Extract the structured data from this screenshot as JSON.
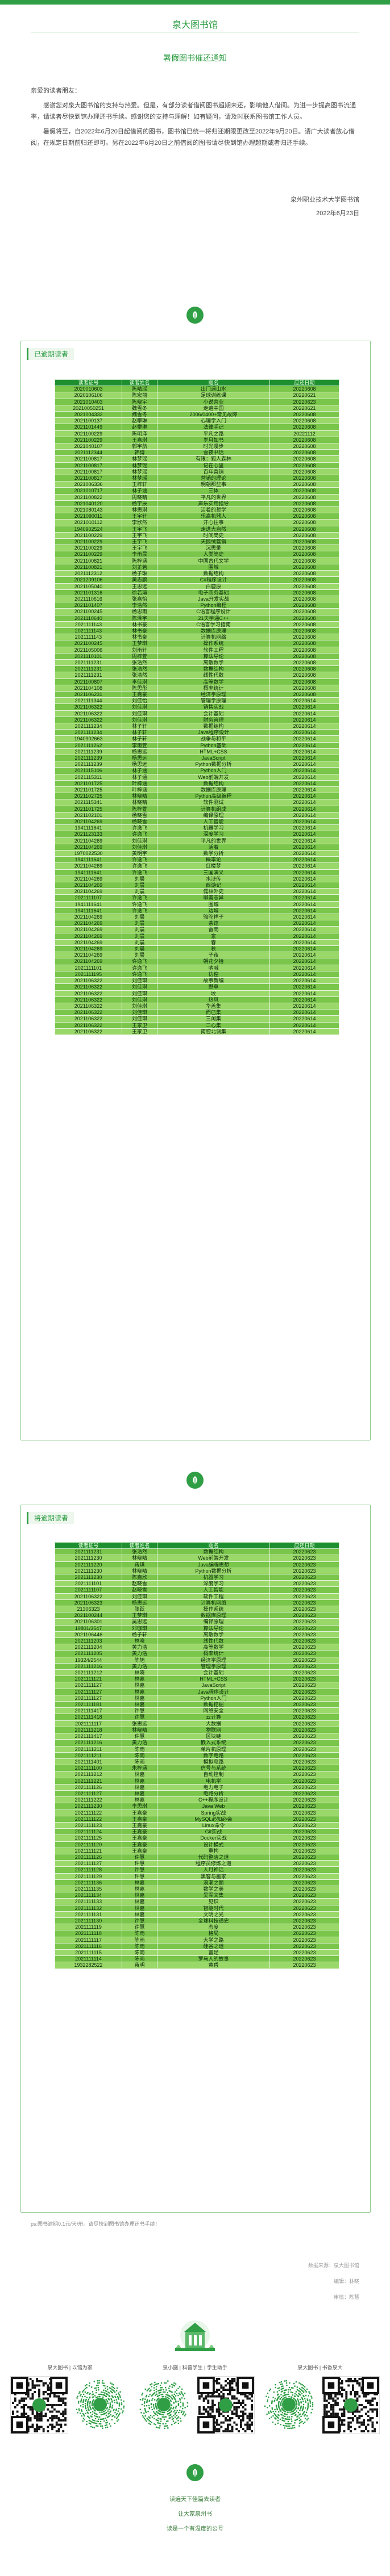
{
  "site_title": "泉大图书馆",
  "page_title": "暑假图书催还通知",
  "letter": {
    "greeting": "亲爱的读者朋友：",
    "p1": "感谢您对泉大图书馆的支持与热爱。但是，有部分读者借阅图书超期未还，影响他人借阅。为进一步提高图书流通率，请读者尽快到馆办理还书手续。感谢您的支持与理解！如有疑问，请及时联系图书馆工作人员。",
    "p2": "暑假将至，自2022年6月20日起借阅的图书，图书馆已统一将归还期限更改至2022年9月20日。请广大读者放心借阅，在规定日期前归还即可。另在2022年6月20日之前借阅的图书请尽快到馆办理超期或者归还手续。",
    "org": "泉州职业技术大学图书馆",
    "date": "2022年6月23日"
  },
  "sections": {
    "overdue": {
      "title": "已逾期读者",
      "headers": [
        "读者证号",
        "读者姓名",
        "题名",
        "应还日期"
      ],
      "rows": [
        [
          "2020010603",
          "陈晴瑶",
          "出门遇山水",
          "20220608"
        ],
        [
          "2020106106",
          "陈宏丽",
          "足球训练课",
          "20220621"
        ],
        [
          "2021010403",
          "陈晓宇",
          "小说营业",
          "20220623"
        ],
        [
          "20210050251",
          "魏雪冬",
          "走遍中国",
          "20220621"
        ],
        [
          "2021004332",
          "魏雪冬",
          "2006/0400+常见故障",
          "20220608"
        ],
        [
          "2021100137",
          "赵攀琳",
          "心理学入门",
          "20220608"
        ],
        [
          "2021101449",
          "赵攀琳",
          "法律手记",
          "20220608"
        ],
        [
          "2021100229",
          "陈明泽",
          "平凡之路",
          "20221112"
        ],
        [
          "2021100229",
          "王嘉琪",
          "岁月如书",
          "20220608"
        ],
        [
          "2021040107",
          "郭宇航",
          "时光漫步",
          "20220608"
        ],
        [
          "2021112344",
          "韩博",
          "雪夜书话",
          "20220608"
        ],
        [
          "2021100817",
          "林梦瑶",
          "有限：狐人森林",
          "20220608"
        ],
        [
          "2021100817",
          "林梦瑶",
          "记在心里",
          "20220608"
        ],
        [
          "2021100817",
          "林梦瑶",
          "百年营销",
          "20220608"
        ],
        [
          "2021100817",
          "林梦瑶",
          "营销的理论",
          "20220608"
        ],
        [
          "2021006336",
          "王梓轩",
          "明朝那些事",
          "20220608"
        ],
        [
          "2021010717",
          "林子涵",
          "三体",
          "20220608"
        ],
        [
          "2021100822",
          "周晓晴",
          "平凡的世界",
          "20220608"
        ],
        [
          "2021040120",
          "杨宇辰",
          "声乐实用指导",
          "20220608"
        ],
        [
          "2021080143",
          "林思琪",
          "活着的哲学",
          "20220608"
        ],
        [
          "2021090011",
          "王宇轩",
          "乐高机器人",
          "20220608"
        ],
        [
          "2021010112",
          "李欣然",
          "开心往事",
          "20220608"
        ],
        [
          "1940902524",
          "王宇飞",
          "走进大自然",
          "20220608"
        ],
        [
          "2021100229",
          "王宇飞",
          "时间简史",
          "20220608"
        ],
        [
          "2021100229",
          "王宇飞",
          "天鹅绒营销",
          "20220608"
        ],
        [
          "2021100229",
          "王宇飞",
          "沉思录",
          "20220608"
        ],
        [
          "2021100229",
          "李雨晨",
          "人类简史",
          "20220608"
        ],
        [
          "2021100821",
          "陈梓涵",
          "中国古代文学",
          "20220608"
        ],
        [
          "2021100821",
          "刘芷若",
          "围城",
          "20220608"
        ],
        [
          "2021112312",
          "杨子琳",
          "数据结构",
          "20220608"
        ],
        [
          "2021209106",
          "黄志鹏",
          "C#程序设计",
          "20220608"
        ],
        [
          "2021105040",
          "王思远",
          "白鹿原",
          "20220608"
        ],
        [
          "2021101316",
          "徐若瑄",
          "电子商务基础",
          "20220608"
        ],
        [
          "2021110616",
          "张嘉怡",
          "Java开发实战",
          "20220608"
        ],
        [
          "2021101407",
          "李浩然",
          "Python编程",
          "20220608"
        ],
        [
          "2021100245",
          "杨思雨",
          "C语言程序设计",
          "20220608"
        ],
        [
          "2021110640",
          "陈泽宇",
          "21天学通C++",
          "20220608"
        ],
        [
          "2021111143",
          "林书豪",
          "C语言学习指南",
          "20220608"
        ],
        [
          "2021111143",
          "林书豪",
          "数据库原理",
          "20220608"
        ],
        [
          "2021111143",
          "林书豪",
          "计算机网络",
          "20220608"
        ],
        [
          "2021100245",
          "王梦琪",
          "操作系统",
          "20220608"
        ],
        [
          "2021105006",
          "刘雨轩",
          "软件工程",
          "20220608"
        ],
        [
          "2021110101",
          "周梓萱",
          "算法导论",
          "20220608"
        ],
        [
          "2021111231",
          "张浩然",
          "离散数学",
          "20220608"
        ],
        [
          "2021111231",
          "张浩然",
          "数据结构",
          "20220608"
        ],
        [
          "2021111231",
          "张浩然",
          "线性代数",
          "20220608"
        ],
        [
          "2021100807",
          "李佳琪",
          "高等数学",
          "20220608"
        ],
        [
          "2021104108",
          "陈思彤",
          "概率统计",
          "20220608"
        ],
        [
          "2021106231",
          "王嘉豪",
          "经济学原理",
          "20220608"
        ],
        [
          "2021111344",
          "刘佳怡",
          "管理学原理",
          "20220614"
        ],
        [
          "2021106322",
          "刘佳琪",
          "销售实战",
          "20220614"
        ],
        [
          "2021106322",
          "刘佳琪",
          "会计基础",
          "20220614"
        ],
        [
          "2021106322",
          "刘佳琪",
          "财务管理",
          "20220614"
        ],
        [
          "2021111234",
          "林子轩",
          "数据结构",
          "20220614"
        ],
        [
          "2021111234",
          "林子轩",
          "Java程序设计",
          "20220614"
        ],
        [
          "1940902663",
          "林子轩",
          "战争与和平",
          "20220614"
        ],
        [
          "2021111262",
          "李雨萱",
          "Python基础",
          "20220614"
        ],
        [
          "2021111239",
          "杨思远",
          "HTML+CSS",
          "20220614"
        ],
        [
          "2021111239",
          "杨思远",
          "JavaScript",
          "20220614"
        ],
        [
          "2021111239",
          "杨思远",
          "Python数据分析",
          "20220614"
        ],
        [
          "2021115106",
          "林子涵",
          "Python入门",
          "20220614"
        ],
        [
          "2021115311",
          "林子涵",
          "Web前端开发",
          "20220614"
        ],
        [
          "2021101725",
          "叶梓涵",
          "数据结构",
          "20220614"
        ],
        [
          "2021101725",
          "叶梓涵",
          "数据库原理",
          "20220614"
        ],
        [
          "2021102725",
          "林晓晴",
          "Python高级编程",
          "20220614"
        ],
        [
          "2021115341",
          "林晓晴",
          "软件测试",
          "20220614"
        ],
        [
          "2021101725",
          "陈梓萱",
          "计算机组成",
          "20220614"
        ],
        [
          "2021102101",
          "杨晓雪",
          "编译原理",
          "20220614"
        ],
        [
          "2021104269",
          "杨晓雪",
          "人工智能",
          "20220614"
        ],
        [
          "1941111641",
          "许逸飞",
          "机器学习",
          "20220614"
        ],
        [
          "2021123133",
          "许逸飞",
          "深度学习",
          "20220614"
        ],
        [
          "2021104269",
          "刘佳琪",
          "平凡的世界",
          "20220614"
        ],
        [
          "2021104269",
          "刘佳琪",
          "活着",
          "20220614"
        ],
        [
          "1970022530",
          "黄明宇",
          "数学分析",
          "20220614"
        ],
        [
          "1941111641",
          "许逸飞",
          "概率论",
          "20220614"
        ],
        [
          "2021104269",
          "许逸飞",
          "红楼梦",
          "20220614"
        ],
        [
          "1941111641",
          "许逸飞",
          "三国演义",
          "20220614"
        ],
        [
          "2021104269",
          "刘晨",
          "水浒传",
          "20220614"
        ],
        [
          "2021104269",
          "刘晨",
          "西游记",
          "20220614"
        ],
        [
          "2021104269",
          "刘晨",
          "儒林外史",
          "20220614"
        ],
        [
          "2021111107",
          "许逸飞",
          "聊斋志异",
          "20220614"
        ],
        [
          "1941111641",
          "许逸飞",
          "围城",
          "20220614"
        ],
        [
          "1941111641",
          "许逸飞",
          "边城",
          "20220614"
        ],
        [
          "2021104269",
          "刘晨",
          "骆驼祥子",
          "20220614"
        ],
        [
          "2021104269",
          "刘晨",
          "茶馆",
          "20220614"
        ],
        [
          "2021104269",
          "刘晨",
          "雷雨",
          "20220614"
        ],
        [
          "2021104269",
          "刘晨",
          "家",
          "20220614"
        ],
        [
          "2021104269",
          "刘晨",
          "春",
          "20220614"
        ],
        [
          "2021104269",
          "刘晨",
          "秋",
          "20220614"
        ],
        [
          "2021104269",
          "刘晨",
          "子夜",
          "20220614"
        ],
        [
          "2021104269",
          "许逸飞",
          "朝花夕拾",
          "20220614"
        ],
        [
          "2021111101",
          "许逸飞",
          "呐喊",
          "20220614"
        ],
        [
          "2021111195",
          "许逸飞",
          "彷徨",
          "20220614"
        ],
        [
          "2021106322",
          "刘佳琪",
          "故事新编",
          "20220614"
        ],
        [
          "2021106322",
          "刘佳琪",
          "野草",
          "20220614"
        ],
        [
          "2021106322",
          "刘佳琪",
          "坟",
          "20220614"
        ],
        [
          "2021106322",
          "刘佳琪",
          "热风",
          "20220614"
        ],
        [
          "2021106322",
          "刘佳琪",
          "华盖集",
          "20220614"
        ],
        [
          "2021106322",
          "刘佳琪",
          "而已集",
          "20220614"
        ],
        [
          "2021106322",
          "刘佳琪",
          "三闲集",
          "20220614"
        ],
        [
          "2021106322",
          "王家卫",
          "二心集",
          "20220614"
        ],
        [
          "2021106322",
          "王家卫",
          "南腔北调集",
          "20220614"
        ]
      ]
    },
    "upcoming": {
      "title": "将逾期读者",
      "headers": [
        "读者证号",
        "读者姓名",
        "题名",
        "应还日期"
      ],
      "rows": [
        [
          "2021111231",
          "张浩然",
          "数据结构",
          "20220623"
        ],
        [
          "2021111230",
          "林晓晴",
          "Web前端开发",
          "20220623"
        ],
        [
          "2021111220",
          "蒋琪",
          "Java编程思想",
          "20220623"
        ],
        [
          "2021111230",
          "林晓晴",
          "Python数据分析",
          "20220623"
        ],
        [
          "2021111230",
          "陈嘉欣",
          "机器学习",
          "20220623"
        ],
        [
          "2021111101",
          "赵晓雪",
          "深度学习",
          "20220623"
        ],
        [
          "2021111107",
          "赵晓雪",
          "人工智能",
          "20220623"
        ],
        [
          "2021106322",
          "刘佳琪",
          "软件工程",
          "20220623"
        ],
        [
          "2021106323",
          "杨思远",
          "计算机网络",
          "20220623"
        ],
        [
          "21306323",
          "张跃",
          "操作系统",
          "20220623"
        ],
        [
          "2021100244",
          "王梦琪",
          "数据库原理",
          "20220623"
        ],
        [
          "2021106301",
          "吴思远",
          "编译原理",
          "20220623"
        ],
        [
          "19801/3547",
          "邓珈琪",
          "算法导论",
          "20220623"
        ],
        [
          "2021106446",
          "杨子轩",
          "离散数学",
          "20220623"
        ],
        [
          "2021111203",
          "林晓",
          "线性代数",
          "20220623"
        ],
        [
          "2021111204",
          "黄力浩",
          "高等数学",
          "20220623"
        ],
        [
          "2021111205",
          "黄力浩",
          "概率统计",
          "20220623"
        ],
        [
          "19324/2544",
          "陈旭",
          "经济学原理",
          "20220623"
        ],
        [
          "2021111216",
          "黄力浩",
          "管理学原理",
          "20220623"
        ],
        [
          "2021111212",
          "林晓",
          "会计基础",
          "20220623"
        ],
        [
          "2021111121",
          "林嘉",
          "HTML+CSS",
          "20220623"
        ],
        [
          "2021111127",
          "林嘉",
          "JavaScript",
          "20220623"
        ],
        [
          "2021111127",
          "林嘉",
          "Java程序设计",
          "20220623"
        ],
        [
          "2021111127",
          "林嘉",
          "Python入门",
          "20220623"
        ],
        [
          "2021111181",
          "林嘉",
          "数据挖掘",
          "20220623"
        ],
        [
          "2021111417",
          "许慧",
          "网络安全",
          "20220623"
        ],
        [
          "2021111418",
          "许慧",
          "云计算",
          "20220623"
        ],
        [
          "2021111117",
          "张思远",
          "大数据",
          "20220623"
        ],
        [
          "2021111218",
          "林晓晴",
          "物联网",
          "20220623"
        ],
        [
          "2021111417",
          "许慧",
          "区块链",
          "20220623"
        ],
        [
          "2021111216",
          "黄力浩",
          "嵌入式系统",
          "20220623"
        ],
        [
          "2021111211",
          "陈雨",
          "单片机原理",
          "20220623"
        ],
        [
          "2021111211",
          "陈雨",
          "数字电路",
          "20220623"
        ],
        [
          "2021111401",
          "陈雨",
          "模拟电路",
          "20220623"
        ],
        [
          "2021111100",
          "朱梓涵",
          "信号与系统",
          "20220623"
        ],
        [
          "2021111212",
          "林嘉",
          "自动控制",
          "20220623"
        ],
        [
          "2021111221",
          "林嘉",
          "电机学",
          "20220623"
        ],
        [
          "2021111126",
          "林嘉",
          "电力电子",
          "20220623"
        ],
        [
          "2021111127",
          "林嘉",
          "电路分析",
          "20220623"
        ],
        [
          "2021111222",
          "林嘉",
          "C++程序设计",
          "20220623"
        ],
        [
          "2021111230",
          "李思琪",
          "Java Web",
          "20220623"
        ],
        [
          "2021111122",
          "王嘉豪",
          "Spring实战",
          "20220623"
        ],
        [
          "2021111122",
          "王嘉豪",
          "MySQL必知必会",
          "20220623"
        ],
        [
          "2021111123",
          "王嘉豪",
          "Linux命令",
          "20220623"
        ],
        [
          "2021111124",
          "王嘉豪",
          "Git实战",
          "20220623"
        ],
        [
          "2021111125",
          "王嘉豪",
          "Docker实战",
          "20220623"
        ],
        [
          "2021111120",
          "王嘉豪",
          "设计模式",
          "20220623"
        ],
        [
          "2021111121",
          "王嘉豪",
          "重构",
          "20220623"
        ],
        [
          "2021111126",
          "许慧",
          "代码整洁之道",
          "20220623"
        ],
        [
          "2021111127",
          "许慧",
          "程序员修炼之道",
          "20220623"
        ],
        [
          "2021111128",
          "许慧",
          "人月神话",
          "20220623"
        ],
        [
          "2021111129",
          "许慧",
          "黑客与画家",
          "20220623"
        ],
        [
          "2021111136",
          "林嘉",
          "浪潮之巅",
          "20220623"
        ],
        [
          "2021111135",
          "林嘉",
          "数学之美",
          "20220623"
        ],
        [
          "2021111134",
          "林嘉",
          "吴军文集",
          "20220623"
        ],
        [
          "2021111133",
          "林嘉",
          "见识",
          "20220623"
        ],
        [
          "2021111132",
          "林嘉",
          "智能时代",
          "20220623"
        ],
        [
          "2021111131",
          "林嘉",
          "文明之光",
          "20220623"
        ],
        [
          "2021111130",
          "许慧",
          "全球科技通史",
          "20220623"
        ],
        [
          "2021111119",
          "许慧",
          "态度",
          "20220623"
        ],
        [
          "2021111118",
          "陈雨",
          "格局",
          "20220623"
        ],
        [
          "2021111117",
          "陈雨",
          "大学之路",
          "20220623"
        ],
        [
          "2021111116",
          "陈雨",
          "硅谷之谜",
          "20220623"
        ],
        [
          "2021111115",
          "陈雨",
          "富足",
          "20220623"
        ],
        [
          "2021111114",
          "陈雨",
          "罗马人的故事",
          "20220623"
        ],
        [
          "1932282522",
          "蒋明",
          "黄昏",
          "20220623"
        ]
      ]
    }
  },
  "ps_note": "ps:图书逾期0.1元/天/册。请尽快到图书馆办理还书手续！",
  "footer_meta": {
    "source": "数据来源：泉大图书馆",
    "editor": "编辑：林晓",
    "review": "审核：陈慧"
  },
  "qr_cards": [
    {
      "caption": "泉大图书 | 以馆为家"
    },
    {
      "caption": "泉小圆 | 科普学生 | 学生助手"
    },
    {
      "caption": "泉大图书 | 书香泉大"
    }
  ],
  "footer_lines": [
    "读遍天下佳篇去读者",
    "让大家泉州书",
    "读是一个有温度的公号"
  ],
  "colors": {
    "brand": "#2f9e45",
    "table_header": "#1e8f2f",
    "row_a": "#79c64a",
    "row_b": "#9bd86a"
  }
}
